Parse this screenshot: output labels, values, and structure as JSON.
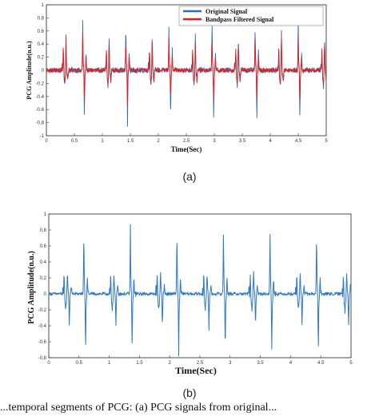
{
  "chart_data": [
    {
      "type": "line",
      "panel_label": "(a)",
      "xlabel": "Time(Sec)",
      "ylabel": "PCG Amplitude(n.u.)",
      "xlim": [
        0,
        5
      ],
      "ylim": [
        -1,
        1
      ],
      "x_ticks": [
        "0",
        "0.5",
        "1",
        "1.5",
        "2",
        "2.5",
        "3",
        "3.5",
        "4",
        "4.5",
        "5"
      ],
      "y_ticks": [
        "1",
        "0.8",
        "0.6",
        "0.4",
        "0.2",
        "0",
        "-0.2",
        "-0.4",
        "-0.6",
        "-0.8",
        "-1"
      ],
      "grid": false,
      "legend_position": "top-right",
      "beat_times": [
        0.3,
        1.07,
        1.84,
        2.61,
        3.38,
        4.15,
        4.92
      ],
      "series": [
        {
          "name": "Original Signal",
          "color": "#2f6db5",
          "peaks": [
            {
              "t": 0.0,
              "amp": 0.28
            },
            {
              "t": 0.03,
              "amp": -0.35
            },
            {
              "t": 0.05,
              "amp": 0.55
            },
            {
              "t": 0.08,
              "amp": -0.2
            }
          ],
          "s2_peaks": [
            {
              "t": 0.35,
              "amp": 0.78
            },
            {
              "t": 0.38,
              "amp": -0.82
            },
            {
              "t": 0.41,
              "amp": 0.3
            }
          ],
          "baseline_noise": 0.04
        },
        {
          "name": "Bandpass Filtered Signal",
          "color": "#e02020",
          "peaks": [
            {
              "t": 0.0,
              "amp": 0.32
            },
            {
              "t": 0.03,
              "amp": -0.3
            },
            {
              "t": 0.05,
              "amp": 0.45
            },
            {
              "t": 0.08,
              "amp": -0.22
            }
          ],
          "s2_peaks": [
            {
              "t": 0.35,
              "amp": 0.55
            },
            {
              "t": 0.38,
              "amp": -0.5
            },
            {
              "t": 0.41,
              "amp": 0.22
            }
          ],
          "baseline_noise": 0.03
        }
      ]
    },
    {
      "type": "line",
      "panel_label": "(b)",
      "xlabel": "Time(Sec)",
      "ylabel": "PCG Amplitude(n.u.)",
      "xlim": [
        0,
        5
      ],
      "ylim": [
        -0.8,
        1
      ],
      "x_ticks": [
        "0",
        "0.5",
        "1",
        "1.5",
        "2",
        "2.5",
        "3",
        "3.5",
        "4",
        "4.5",
        "5"
      ],
      "y_ticks": [
        "1",
        "0.8",
        "0.6",
        "0.4",
        "0.2",
        "0",
        "-0.2",
        "-0.4",
        "-0.6",
        "-0.8"
      ],
      "grid": false,
      "beat_times": [
        0.25,
        1.02,
        1.79,
        2.56,
        3.33,
        4.1,
        4.87
      ],
      "series": [
        {
          "name": "",
          "color": "#2f78c4",
          "peaks": [
            {
              "t": 0.0,
              "amp": 0.2
            },
            {
              "t": 0.03,
              "amp": -0.3
            },
            {
              "t": 0.06,
              "amp": 0.28
            },
            {
              "t": 0.09,
              "amp": -0.42
            },
            {
              "t": 0.12,
              "amp": 0.12
            }
          ],
          "s2_peaks": [
            {
              "t": 0.33,
              "amp": 0.85
            },
            {
              "t": 0.36,
              "amp": -0.78
            },
            {
              "t": 0.39,
              "amp": 0.2
            }
          ],
          "baseline_noise": 0.02
        }
      ]
    }
  ],
  "caption": {
    "text": "...temporal segments of PCG: (a) PCG signals from original..."
  }
}
